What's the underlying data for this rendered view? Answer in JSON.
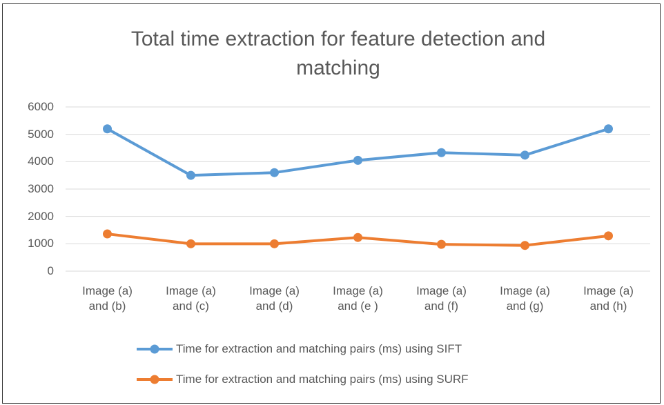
{
  "chart_data": {
    "type": "line",
    "title": "Total time extraction for feature detection and matching",
    "categories": [
      "Image (a) and (b)",
      "Image (a) and (c)",
      "Image (a) and (d)",
      "Image (a) and (e )",
      "Image (a) and (f)",
      "Image (a) and (g)",
      "Image (a) and (h)"
    ],
    "series": [
      {
        "name": "Time for extraction and matching pairs (ms) using SIFT",
        "color": "#5b9bd5",
        "values": [
          5200,
          3500,
          3600,
          4050,
          4330,
          4240,
          5200
        ]
      },
      {
        "name": "Time for extraction and matching pairs (ms) using SURF",
        "color": "#ed7d31",
        "values": [
          1360,
          1000,
          1000,
          1230,
          980,
          940,
          1290
        ]
      }
    ],
    "ylim": [
      0,
      6000
    ],
    "yticks": [
      0,
      1000,
      2000,
      3000,
      4000,
      5000,
      6000
    ],
    "grid": true,
    "legend": "bottom"
  }
}
